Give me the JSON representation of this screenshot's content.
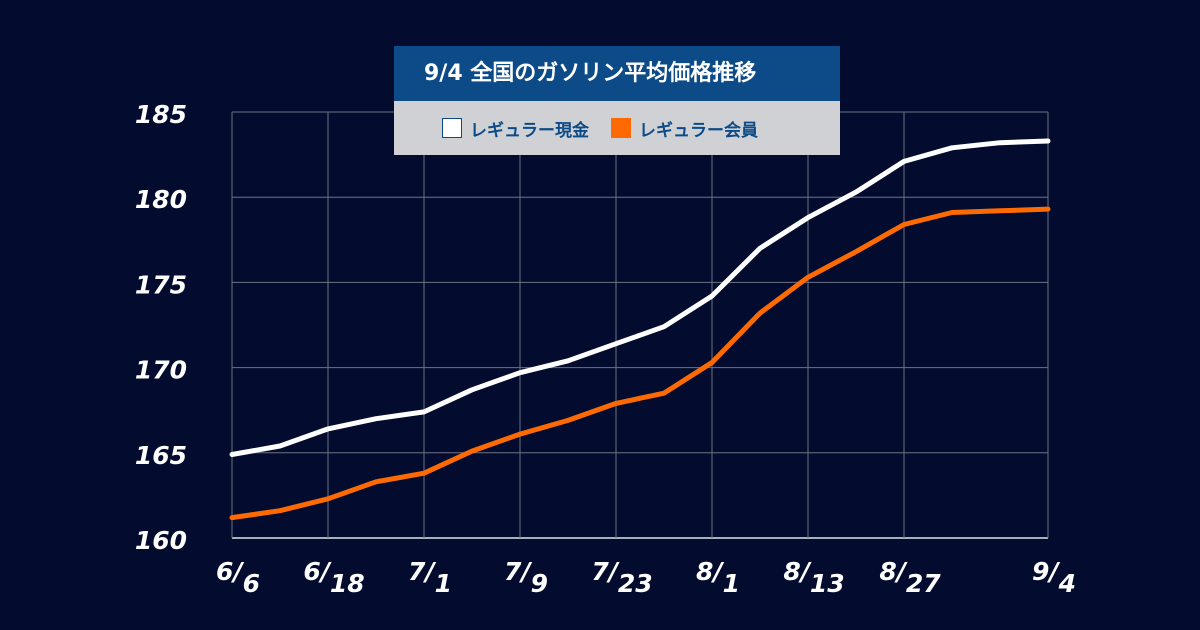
{
  "chart_data": {
    "type": "line",
    "title": "9/4  全国のガソリン平均価格推移",
    "xlabel": "",
    "ylabel": "",
    "ylim": [
      160,
      185
    ],
    "yticks": [
      160,
      165,
      170,
      175,
      180,
      185
    ],
    "grid": true,
    "legend_position": "top-center",
    "x_tick_labels": [
      {
        "index": 0,
        "month": "6",
        "day": "6"
      },
      {
        "index": 2,
        "month": "6",
        "day": "18"
      },
      {
        "index": 4,
        "month": "7",
        "day": "1"
      },
      {
        "index": 6,
        "month": "7",
        "day": "9"
      },
      {
        "index": 8,
        "month": "7",
        "day": "23"
      },
      {
        "index": 10,
        "month": "8",
        "day": "1"
      },
      {
        "index": 12,
        "month": "8",
        "day": "13"
      },
      {
        "index": 14,
        "month": "8",
        "day": "27"
      },
      {
        "index": 17,
        "month": "9",
        "day": "4"
      }
    ],
    "point_count": 18,
    "series": [
      {
        "name": "レギュラー現金",
        "color": "#ffffff",
        "values": [
          164.9,
          165.4,
          166.4,
          167.0,
          167.4,
          168.7,
          169.7,
          170.4,
          171.4,
          172.4,
          174.2,
          177.0,
          178.8,
          180.3,
          182.1,
          182.9,
          183.2,
          183.3
        ]
      },
      {
        "name": "レギュラー会員",
        "color": "#ff6a00",
        "values": [
          161.2,
          161.6,
          162.3,
          163.3,
          163.8,
          165.1,
          166.1,
          166.9,
          167.9,
          168.5,
          170.3,
          173.2,
          175.3,
          176.8,
          178.4,
          179.1,
          179.2,
          179.3
        ]
      }
    ]
  }
}
